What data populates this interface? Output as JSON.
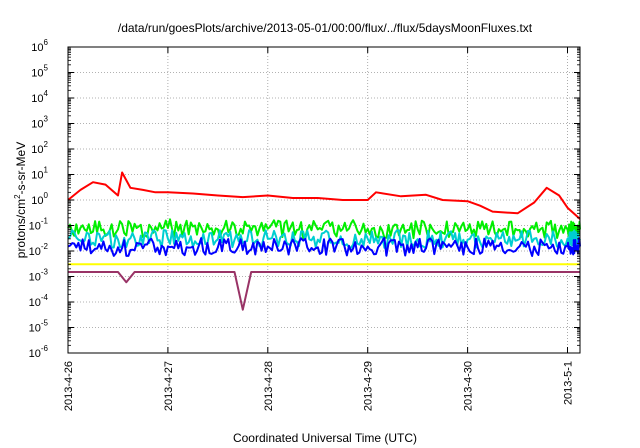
{
  "chart_data": {
    "type": "line",
    "title": "/data/run/goesPlots/archive/2013-05-01/00:00/flux/../flux/5daysMoonFluxes.txt",
    "xlabel": "Coordinated Universal Time (UTC)",
    "ylabel": "protons/cm²-s-sr-MeV",
    "ylabel_parts": {
      "pre": "protons/cm",
      "sup": "2",
      "post": "-s-sr-MeV"
    },
    "yscale": "log",
    "ylim": [
      1e-06,
      1000000.0
    ],
    "xlim": [
      "2013-04-26",
      "2013-05-01T03:00"
    ],
    "grid": true,
    "x_ticks": [
      "2013-4-26",
      "2013-4-27",
      "2013-4-28",
      "2013-4-29",
      "2013-4-30",
      "2013-5-1"
    ],
    "y_ticks": [
      {
        "base": "10",
        "exp": "-6",
        "value": 1e-06
      },
      {
        "base": "10",
        "exp": "-5",
        "value": 1e-05
      },
      {
        "base": "10",
        "exp": "-4",
        "value": 0.0001
      },
      {
        "base": "10",
        "exp": "-3",
        "value": 0.001
      },
      {
        "base": "10",
        "exp": "-2",
        "value": 0.01
      },
      {
        "base": "10",
        "exp": "-1",
        "value": 0.1
      },
      {
        "base": "10",
        "exp": "0",
        "value": 1
      },
      {
        "base": "10",
        "exp": "1",
        "value": 10
      },
      {
        "base": "10",
        "exp": "2",
        "value": 100
      },
      {
        "base": "10",
        "exp": "3",
        "value": 1000
      },
      {
        "base": "10",
        "exp": "4",
        "value": 10000
      },
      {
        "base": "10",
        "exp": "5",
        "value": 100000
      },
      {
        "base": "10",
        "exp": "6",
        "value": 1000000
      }
    ],
    "series": [
      {
        "color": "#ff0000",
        "x": [
          "2013-04-26T00:00",
          "2013-04-26T03:00",
          "2013-04-26T06:00",
          "2013-04-26T09:00",
          "2013-04-26T12:00",
          "2013-04-26T13:00",
          "2013-04-26T15:00",
          "2013-04-26T18:00",
          "2013-04-26T21:00",
          "2013-04-27T00:00",
          "2013-04-27T06:00",
          "2013-04-27T12:00",
          "2013-04-27T18:00",
          "2013-04-28T00:00",
          "2013-04-28T06:00",
          "2013-04-28T12:00",
          "2013-04-28T18:00",
          "2013-04-29T00:00",
          "2013-04-29T02:00",
          "2013-04-29T08:00",
          "2013-04-29T14:00",
          "2013-04-29T18:00",
          "2013-04-30T00:00",
          "2013-04-30T03:00",
          "2013-04-30T06:00",
          "2013-04-30T12:00",
          "2013-04-30T16:00",
          "2013-04-30T19:00",
          "2013-04-30T22:00",
          "2013-05-01T00:00",
          "2013-05-01T03:00"
        ],
        "y": [
          1.0,
          2.5,
          5.0,
          4.0,
          1.5,
          12.0,
          3.0,
          2.5,
          2.0,
          2.0,
          1.8,
          1.5,
          1.3,
          1.5,
          1.2,
          1.2,
          1.0,
          1.0,
          2.0,
          1.4,
          1.6,
          1.0,
          0.9,
          0.6,
          0.35,
          0.3,
          0.8,
          3.0,
          1.5,
          0.5,
          0.18
        ]
      },
      {
        "color": "#00ee00",
        "x": [
          "2013-04-26T00:00",
          "2013-04-26T12:00",
          "2013-04-27T00:00",
          "2013-04-27T12:00",
          "2013-04-28T00:00",
          "2013-04-28T12:00",
          "2013-04-29T00:00",
          "2013-04-29T12:00",
          "2013-04-30T00:00",
          "2013-04-30T12:00",
          "2013-05-01T00:00",
          "2013-05-01T03:00"
        ],
        "y": [
          0.08,
          0.07,
          0.08,
          0.07,
          0.075,
          0.07,
          0.075,
          0.07,
          0.07,
          0.065,
          0.07,
          0.07
        ]
      },
      {
        "color": "#00ced1",
        "x": [
          "2013-04-26T00:00",
          "2013-04-26T12:00",
          "2013-04-27T00:00",
          "2013-04-27T12:00",
          "2013-04-28T00:00",
          "2013-04-28T12:00",
          "2013-04-29T00:00",
          "2013-04-29T12:00",
          "2013-04-30T00:00",
          "2013-04-30T12:00",
          "2013-05-01T00:00",
          "2013-05-01T03:00"
        ],
        "y": [
          0.03,
          0.028,
          0.03,
          0.029,
          0.03,
          0.028,
          0.03,
          0.029,
          0.028,
          0.027,
          0.03,
          0.03
        ]
      },
      {
        "color": "#0000ff",
        "x": [
          "2013-04-26T00:00",
          "2013-04-26T12:00",
          "2013-04-27T00:00",
          "2013-04-27T12:00",
          "2013-04-28T00:00",
          "2013-04-28T12:00",
          "2013-04-29T00:00",
          "2013-04-29T12:00",
          "2013-04-30T00:00",
          "2013-04-30T12:00",
          "2013-05-01T00:00",
          "2013-05-01T03:00"
        ],
        "y": [
          0.015,
          0.014,
          0.015,
          0.014,
          0.015,
          0.014,
          0.015,
          0.014,
          0.014,
          0.013,
          0.015,
          0.015
        ]
      },
      {
        "color": "#ffff00",
        "x": [
          "2013-04-26T00:00",
          "2013-05-01T03:00"
        ],
        "y": [
          0.003,
          0.003
        ]
      },
      {
        "color": "#993366",
        "x": [
          "2013-04-26T00:00",
          "2013-04-26T12:00",
          "2013-04-26T14:00",
          "2013-04-26T16:00",
          "2013-04-27T00:00",
          "2013-04-27T12:00",
          "2013-04-27T16:00",
          "2013-04-27T18:00",
          "2013-04-27T20:00",
          "2013-04-28T00:00",
          "2013-04-29T00:00",
          "2013-04-30T00:00",
          "2013-05-01T00:00",
          "2013-05-01T03:00"
        ],
        "y": [
          0.0015,
          0.0015,
          0.0006,
          0.0015,
          0.0015,
          0.0015,
          0.0015,
          5e-05,
          0.0015,
          0.0015,
          0.0015,
          0.0015,
          0.0015,
          0.0015
        ]
      }
    ]
  }
}
